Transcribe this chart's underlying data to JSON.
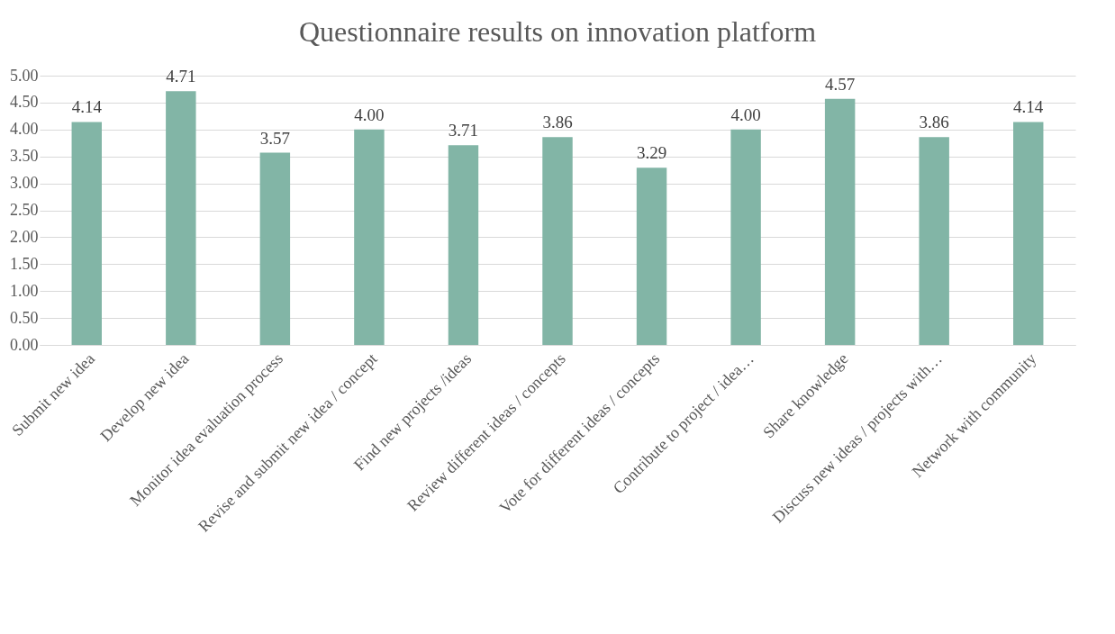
{
  "chart_data": {
    "type": "bar",
    "title": "Questionnaire results on innovation platform",
    "categories": [
      "Submit new idea",
      "Develop new idea",
      "Monitor idea evaluation process",
      "Revise and submit new idea / concept",
      "Find new projects /ideas",
      "Review different ideas / concepts",
      "Vote for different ideas / concepts",
      "Contribute to project / idea…",
      "Share knowledge",
      "Discuss new ideas / projects with…",
      "Network with community"
    ],
    "values": [
      4.14,
      4.71,
      3.57,
      4.0,
      3.71,
      3.86,
      3.29,
      4.0,
      4.57,
      3.86,
      4.14
    ],
    "value_labels": [
      "4.14",
      "4.71",
      "3.57",
      "4.00",
      "3.71",
      "3.86",
      "3.29",
      "4.00",
      "4.57",
      "3.86",
      "4.14"
    ],
    "color": "#82b5a6",
    "ylim": [
      0,
      5
    ],
    "yticks": [
      {
        "value": 0,
        "label": "0.00"
      },
      {
        "value": 0.5,
        "label": "0.50"
      },
      {
        "value": 1,
        "label": "1.00"
      },
      {
        "value": 1.5,
        "label": "1.50"
      },
      {
        "value": 2,
        "label": "2.00"
      },
      {
        "value": 2.5,
        "label": "2.50"
      },
      {
        "value": 3,
        "label": "3.00"
      },
      {
        "value": 3.5,
        "label": "3.50"
      },
      {
        "value": 4,
        "label": "4.00"
      },
      {
        "value": 4.5,
        "label": "4.50"
      },
      {
        "value": 5,
        "label": "5.00"
      }
    ],
    "grid": "y"
  }
}
